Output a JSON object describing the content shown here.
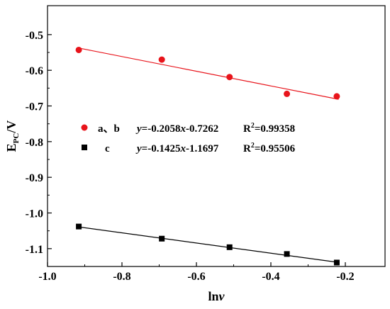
{
  "chart_data": {
    "type": "scatter",
    "xlabel": "lnv",
    "ylabel": "E_PC/V",
    "xlim": [
      -1.0,
      -0.18
    ],
    "ylim": [
      -1.15,
      -0.5
    ],
    "xticks": [
      -1.0,
      -0.8,
      -0.6,
      -0.4,
      -0.2
    ],
    "xtick_labels": [
      "-1.0",
      "-0.8",
      "-0.6",
      "-0.4",
      "-0.2"
    ],
    "yticks": [
      -0.5,
      -0.6,
      -0.7,
      -0.8,
      -0.9,
      -1.0,
      -1.1
    ],
    "ytick_labels": [
      "-0.5",
      "-0.6",
      "-0.7",
      "-0.8",
      "-0.9",
      "-1.0",
      "-1.1"
    ],
    "grid": false,
    "series": [
      {
        "name": "a、b",
        "marker": "circle",
        "color": "#e8141b",
        "x": [
          -0.916,
          -0.693,
          -0.511,
          -0.357,
          -0.223
        ],
        "y": [
          -0.543,
          -0.57,
          -0.619,
          -0.666,
          -0.673
        ],
        "fit": {
          "slope": -0.2058,
          "intercept": -0.7262
        },
        "equation": "y=-0.2058x-0.7262",
        "r2": "R²=0.99358"
      },
      {
        "name": "c",
        "marker": "square",
        "color": "#000000",
        "x": [
          -0.916,
          -0.693,
          -0.511,
          -0.357,
          -0.223
        ],
        "y": [
          -1.038,
          -1.072,
          -1.096,
          -1.115,
          -1.139
        ],
        "fit": {
          "slope": -0.1425,
          "intercept": -1.1697
        },
        "equation": "y=-0.1425x-1.1697",
        "r2": "R²=0.95506"
      }
    ]
  }
}
